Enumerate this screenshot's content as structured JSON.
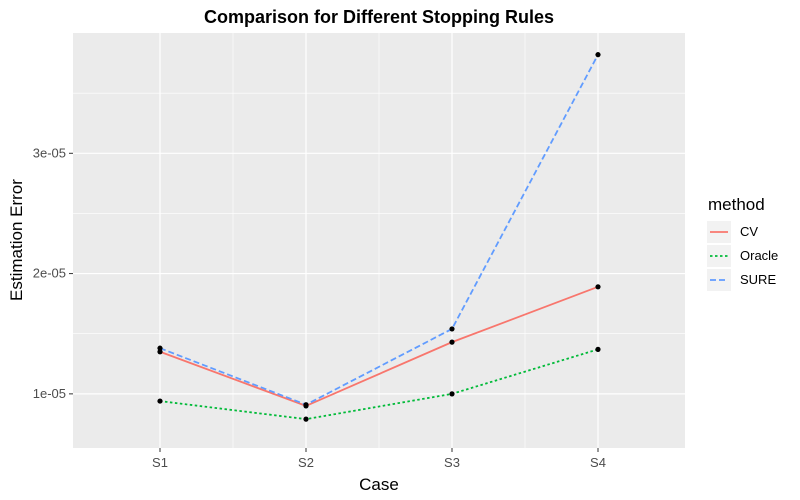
{
  "chart_data": {
    "type": "line",
    "title": "Comparison for Different Stopping Rules",
    "xlabel": "Case",
    "ylabel": "Estimation Error",
    "categories": [
      "S1",
      "S2",
      "S3",
      "S4"
    ],
    "ylim": [
      5.5e-06,
      4e-05
    ],
    "yticks": [
      1e-05,
      2e-05,
      3e-05
    ],
    "ytick_labels": [
      "1e-05",
      "2e-05",
      "3e-05"
    ],
    "grid": true,
    "legend": {
      "title": "method",
      "placement": "right"
    },
    "series": [
      {
        "name": "CV",
        "values": [
          1.35e-05,
          9e-06,
          1.43e-05,
          1.89e-05
        ],
        "color": "#F8766D",
        "dash": "solid"
      },
      {
        "name": "Oracle",
        "values": [
          9.4e-06,
          7.9e-06,
          1e-05,
          1.37e-05
        ],
        "color": "#00BA38",
        "dash": "dotted"
      },
      {
        "name": "SURE",
        "values": [
          1.38e-05,
          9.1e-06,
          1.54e-05,
          3.82e-05
        ],
        "color": "#619CFF",
        "dash": "dashed"
      }
    ]
  }
}
